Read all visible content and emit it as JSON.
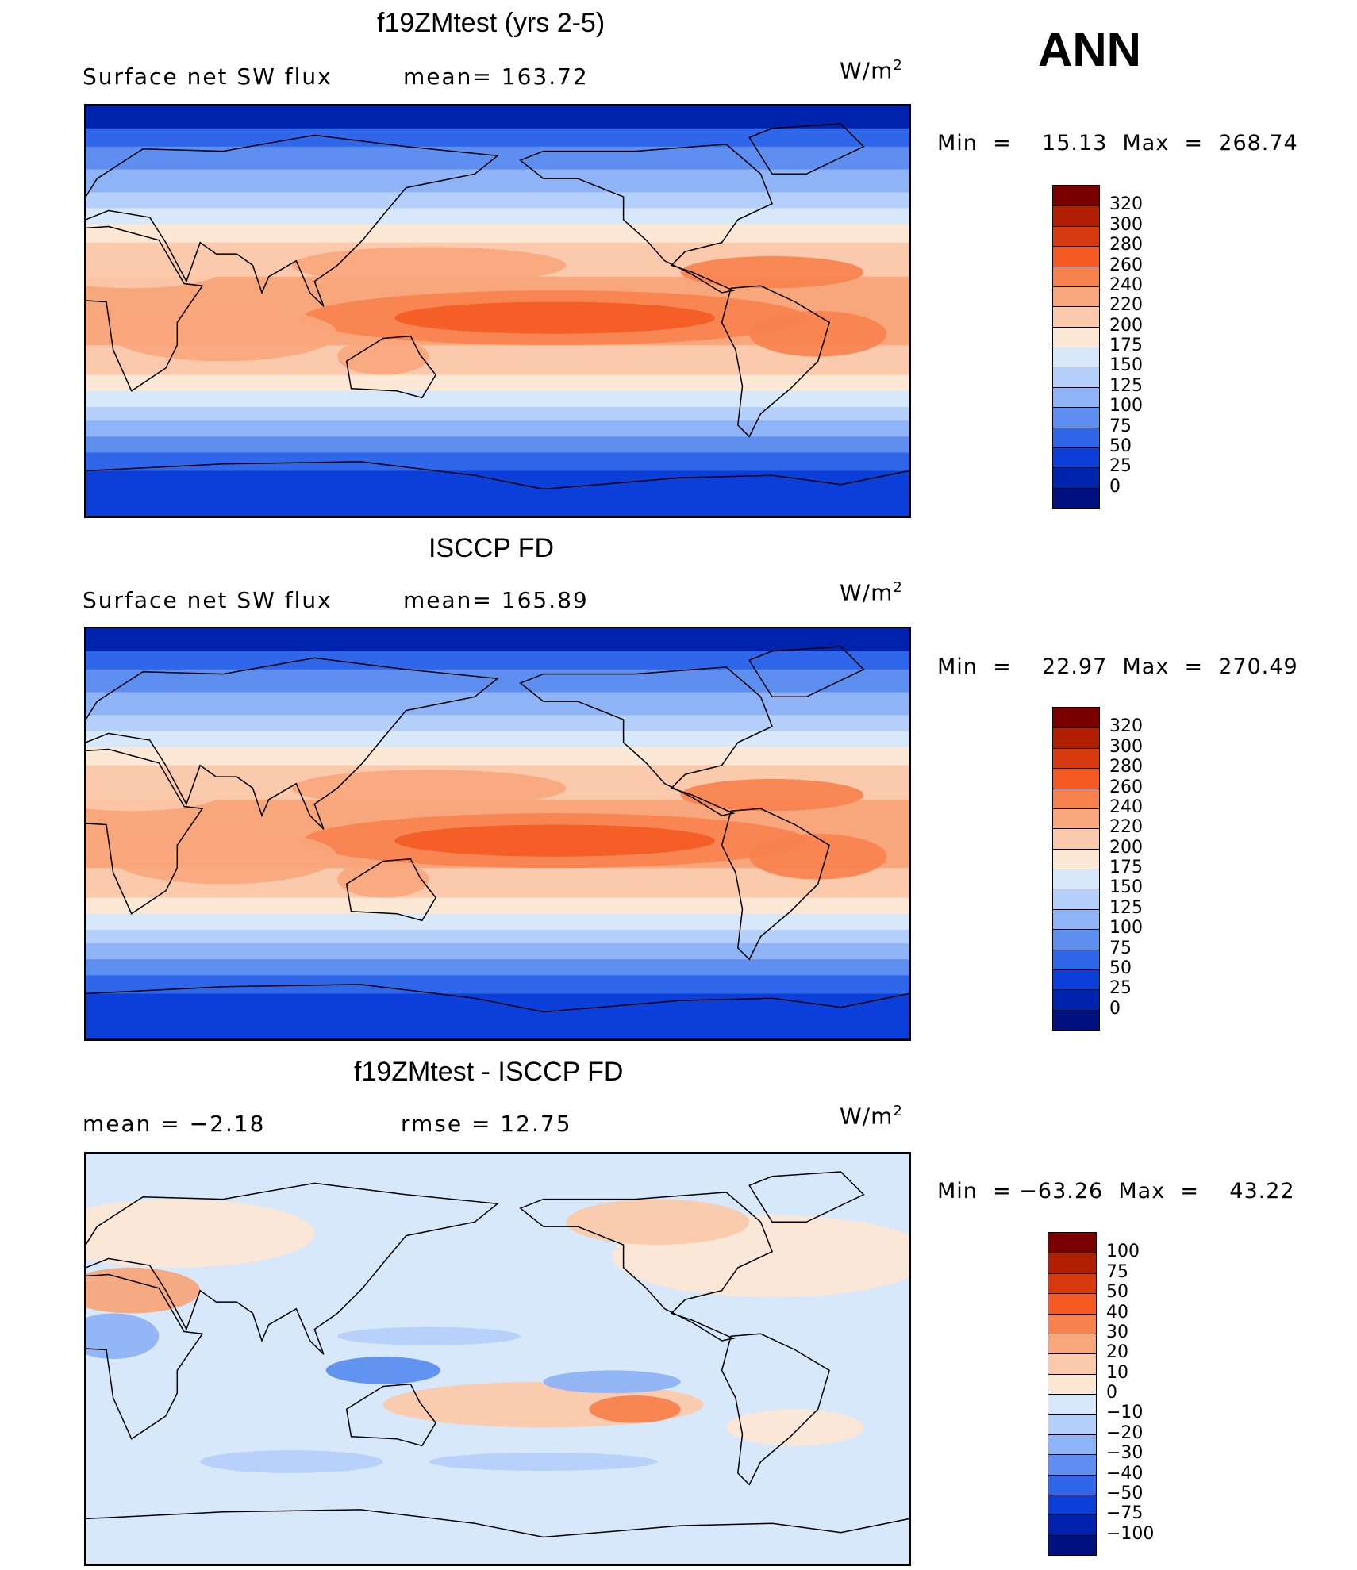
{
  "season": "ANN",
  "panels": [
    {
      "id": "model",
      "title": "f19ZMtest (yrs 2-5)",
      "left_text": "Surface net SW flux",
      "mid_text": "mean=  163.72",
      "units": "W/m",
      "units_sup": "2",
      "minmax": "Min  =    15.13  Max  =  268.74",
      "colorbar_labels": [
        "320",
        "300",
        "280",
        "260",
        "240",
        "220",
        "200",
        "175",
        "150",
        "125",
        "100",
        "75",
        "50",
        "25",
        "0"
      ],
      "colorbar_colors": [
        "#7a0000",
        "#b21e00",
        "#d83a10",
        "#f45a22",
        "#f7824e",
        "#f8a67c",
        "#fbc9ab",
        "#fde7d5",
        "#d8e8fb",
        "#b5d0fa",
        "#8eb3f6",
        "#5d8ef0",
        "#2f66ea",
        "#0c3fd9",
        "#0023ad",
        "#00107f"
      ],
      "field_type": "abs"
    },
    {
      "id": "obs",
      "title": "ISCCP FD",
      "left_text": "Surface net SW flux",
      "mid_text": "mean=  165.89",
      "units": "W/m",
      "units_sup": "2",
      "minmax": "Min  =    22.97  Max  =  270.49",
      "colorbar_labels": [
        "320",
        "300",
        "280",
        "260",
        "240",
        "220",
        "200",
        "175",
        "150",
        "125",
        "100",
        "75",
        "50",
        "25",
        "0"
      ],
      "colorbar_colors": [
        "#7a0000",
        "#b21e00",
        "#d83a10",
        "#f45a22",
        "#f7824e",
        "#f8a67c",
        "#fbc9ab",
        "#fde7d5",
        "#d8e8fb",
        "#b5d0fa",
        "#8eb3f6",
        "#5d8ef0",
        "#2f66ea",
        "#0c3fd9",
        "#0023ad",
        "#00107f"
      ],
      "field_type": "abs"
    },
    {
      "id": "diff",
      "title": "f19ZMtest - ISCCP FD",
      "left_text": "mean  =    −2.18",
      "mid_text": "rmse  =    12.75",
      "units": "W/m",
      "units_sup": "2",
      "minmax": "Min  = −63.26  Max  =    43.22",
      "colorbar_labels": [
        "100",
        "75",
        "50",
        "40",
        "30",
        "20",
        "10",
        "0",
        "−10",
        "−20",
        "−30",
        "−40",
        "−50",
        "−75",
        "−100"
      ],
      "colorbar_colors": [
        "#7a0000",
        "#b21e00",
        "#d83a10",
        "#f45a22",
        "#f7824e",
        "#f8a67c",
        "#fbc9ab",
        "#fde7d5",
        "#d8e8fb",
        "#b5d0fa",
        "#8eb3f6",
        "#5d8ef0",
        "#2f66ea",
        "#0c3fd9",
        "#0023ad",
        "#00107f"
      ],
      "field_type": "diff"
    }
  ]
}
